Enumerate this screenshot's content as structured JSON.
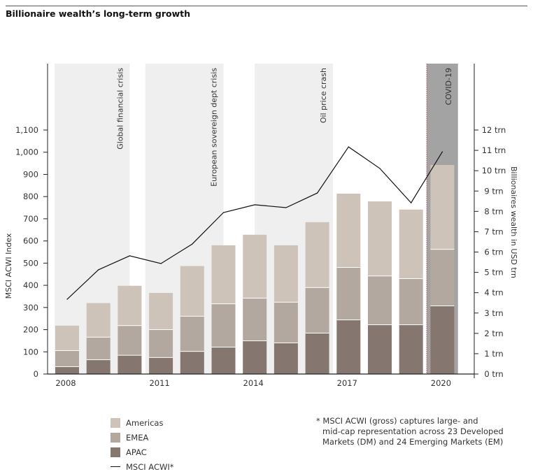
{
  "title": "Billionaire wealth’s long-term growth",
  "chart_data": {
    "type": "bar",
    "stacked": true,
    "title": "Billionaire wealth’s long-term growth",
    "x": [
      2008,
      2009,
      2010,
      2011,
      2012,
      2013,
      2014,
      2015,
      2016,
      2017,
      2018,
      2019,
      2020
    ],
    "x_tick_labels": [
      "2008",
      "2011",
      "2014",
      "2017",
      "2020"
    ],
    "x_tick_years": [
      2008,
      2011,
      2014,
      2017,
      2020
    ],
    "ylabel": "MSCI ACWI Index",
    "ylim": [
      0,
      1100
    ],
    "y_ticks": [
      0,
      100,
      200,
      300,
      400,
      500,
      600,
      700,
      800,
      900,
      1000,
      1100
    ],
    "y_tick_labels": [
      "0",
      "100",
      "200",
      "300",
      "400",
      "500",
      "600",
      "700",
      "800",
      "900",
      "1,000",
      "1,100"
    ],
    "y2label": "Billionaires wealth in USD trn",
    "y2lim": [
      0,
      12
    ],
    "y2_ticks": [
      0,
      1,
      2,
      3,
      4,
      5,
      6,
      7,
      8,
      9,
      10,
      11,
      12
    ],
    "y2_tick_labels": [
      "0 trn",
      "1 trn",
      "2 trn",
      "3 trn",
      "4 trn",
      "5 trn",
      "6 trn",
      "7 trn",
      "8 trn",
      "9 trn",
      "10 trn",
      "11 trn",
      "12 trn"
    ],
    "bar_axis": "y2",
    "series": [
      {
        "name": "APAC",
        "kind": "bar",
        "color": "#857770",
        "values": [
          0.38,
          0.72,
          0.94,
          0.83,
          1.13,
          1.34,
          1.65,
          1.55,
          2.03,
          2.68,
          2.44,
          2.44,
          3.37
        ]
      },
      {
        "name": "EMEA",
        "kind": "bar",
        "color": "#b2a89f",
        "values": [
          0.79,
          1.11,
          1.46,
          1.37,
          1.73,
          2.13,
          2.1,
          2.0,
          2.24,
          2.58,
          2.4,
          2.27,
          2.78
        ]
      },
      {
        "name": "Americas",
        "kind": "bar",
        "color": "#cec3b8",
        "values": [
          1.21,
          1.66,
          1.94,
          1.79,
          2.45,
          2.86,
          3.1,
          2.78,
          3.2,
          3.61,
          3.65,
          3.38,
          4.13
        ]
      },
      {
        "name": "MSCI ACWI*",
        "kind": "line",
        "axis": "y",
        "color": "#111111",
        "values": [
          337,
          470,
          533,
          498,
          586,
          728,
          763,
          750,
          816,
          1024,
          927,
          772,
          1002
        ]
      }
    ],
    "events": [
      {
        "label": "Global financial crisis",
        "start": 2007.6,
        "end": 2010.0,
        "style": "light"
      },
      {
        "label": "European sovereign dept crisis",
        "start": 2010.5,
        "end": 2013.0,
        "style": "light"
      },
      {
        "label": "Oil price crash",
        "start": 2014.0,
        "end": 2016.5,
        "style": "light"
      },
      {
        "label": "COVID-19",
        "start": 2019.5,
        "end": 2020.5,
        "style": "dark"
      }
    ],
    "grid": false,
    "legend_position": "bottom-left"
  },
  "legend": [
    {
      "label": "Americas",
      "color": "#cec3b8",
      "kind": "swatch"
    },
    {
      "label": "EMEA",
      "color": "#b2a89f",
      "kind": "swatch"
    },
    {
      "label": "APAC",
      "color": "#857770",
      "kind": "swatch"
    },
    {
      "label": "MSCI ACWI*",
      "color": "#111111",
      "kind": "line"
    }
  ],
  "footnote": {
    "line1": "* MSCI ACWI (gross) captures large- and",
    "line2": "mid-cap representation across 23 Developed",
    "line3": "Markets (DM) and 24 Emerging Markets (EM)"
  },
  "colors": {
    "event_light": "#efefef",
    "event_dark": "#a3a3a3",
    "covid_marker": "#d04050",
    "axis": "#222222"
  }
}
